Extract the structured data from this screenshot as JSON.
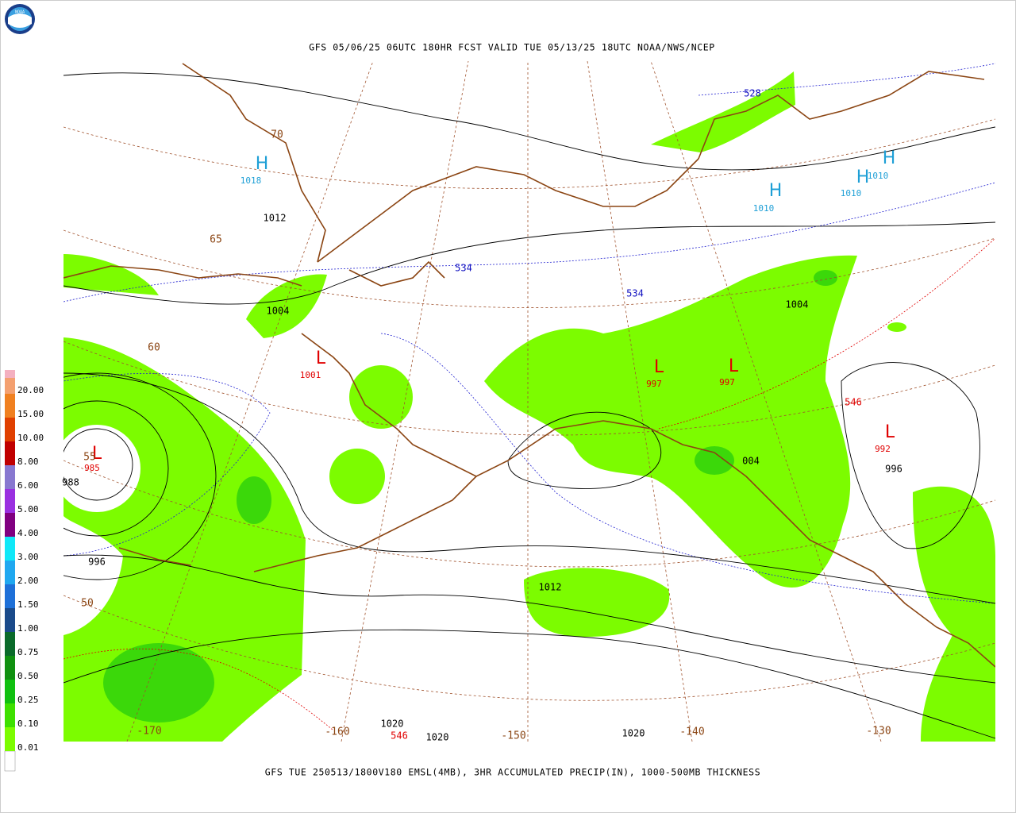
{
  "header": {
    "logo": "NOAA",
    "title": "GFS 05/06/25 06UTC 180HR FCST VALID TUE 05/13/25 18UTC NOAA/NWS/NCEP"
  },
  "footer": {
    "caption": "GFS TUE 250513/1800V180 EMSL(4MB), 3HR ACCUMULATED PRECIP(IN), 1000-500MB THICKNESS"
  },
  "legend": {
    "items": [
      {
        "label": "0.01",
        "color": "#7cfc00"
      },
      {
        "label": "0.10",
        "color": "#3ee000"
      },
      {
        "label": "0.25",
        "color": "#10c010"
      },
      {
        "label": "0.50",
        "color": "#109010"
      },
      {
        "label": "0.75",
        "color": "#0a6a2a"
      },
      {
        "label": "1.00",
        "color": "#1a4a8a"
      },
      {
        "label": "1.50",
        "color": "#1e70d8"
      },
      {
        "label": "2.00",
        "color": "#20a8f0"
      },
      {
        "label": "3.00",
        "color": "#10e8f8"
      },
      {
        "label": "4.00",
        "color": "#800080"
      },
      {
        "label": "5.00",
        "color": "#9a30e0"
      },
      {
        "label": "6.00",
        "color": "#8878d0"
      },
      {
        "label": "8.00",
        "color": "#c00000"
      },
      {
        "label": "10.00",
        "color": "#e04000"
      },
      {
        "label": "15.00",
        "color": "#f08020"
      },
      {
        "label": "20.00",
        "color": "#f4a070"
      }
    ]
  },
  "map": {
    "pressure_centers": [
      {
        "symbol": "H",
        "value": "1018"
      },
      {
        "symbol": "H",
        "value": "1010"
      },
      {
        "symbol": "H",
        "value": "1010"
      },
      {
        "symbol": "H",
        "value": "1010"
      },
      {
        "symbol": "L",
        "value": "1001"
      },
      {
        "symbol": "L",
        "value": "997"
      },
      {
        "symbol": "L",
        "value": "997"
      },
      {
        "symbol": "L",
        "value": "992"
      },
      {
        "symbol": "L",
        "value": "985"
      }
    ],
    "isobar_labels": [
      "1012",
      "1004",
      "1004",
      "996",
      "996",
      "1012",
      "988",
      "004",
      "1020",
      "1020",
      "1020"
    ],
    "thickness_labels": [
      "528",
      "534",
      "534",
      "546",
      "546"
    ],
    "longitude_labels": [
      "-170",
      "-160",
      "-150",
      "-140",
      "-130"
    ],
    "latitude_labels": [
      "70",
      "65",
      "60",
      "55",
      "50"
    ]
  }
}
